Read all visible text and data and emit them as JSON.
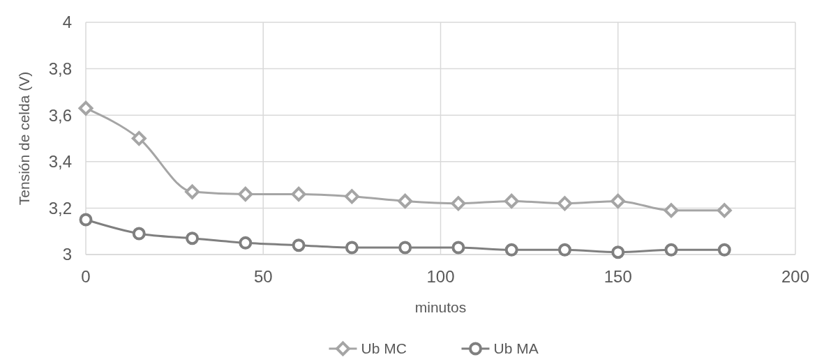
{
  "chart_data": {
    "type": "line",
    "xlabel": "minutos",
    "ylabel": "Tensión de celda (V)",
    "x": [
      0,
      15,
      30,
      45,
      60,
      75,
      90,
      105,
      120,
      135,
      150,
      165,
      180
    ],
    "series": [
      {
        "name": "Ub MC",
        "color": "#a5a5a5",
        "marker": "diamond",
        "values": [
          3.63,
          3.5,
          3.27,
          3.26,
          3.26,
          3.25,
          3.23,
          3.22,
          3.23,
          3.22,
          3.23,
          3.19,
          3.19
        ]
      },
      {
        "name": "Ub MA",
        "color": "#7f7f7f",
        "marker": "circle",
        "values": [
          3.15,
          3.09,
          3.07,
          3.05,
          3.04,
          3.03,
          3.03,
          3.03,
          3.02,
          3.02,
          3.01,
          3.02,
          3.02
        ]
      }
    ],
    "xlim": [
      0,
      200
    ],
    "xticks": [
      0,
      50,
      100,
      150,
      200
    ],
    "ylim": [
      3,
      4
    ],
    "yticks": [
      3,
      {
        "value": 3.2,
        "label": "3,2"
      },
      {
        "value": 3.4,
        "label": "3,4"
      },
      {
        "value": 3.6,
        "label": "3,6"
      },
      {
        "value": 3.8,
        "label": "3,8"
      },
      4
    ],
    "grid": true,
    "legend": "bottom",
    "line_style": "solid"
  }
}
